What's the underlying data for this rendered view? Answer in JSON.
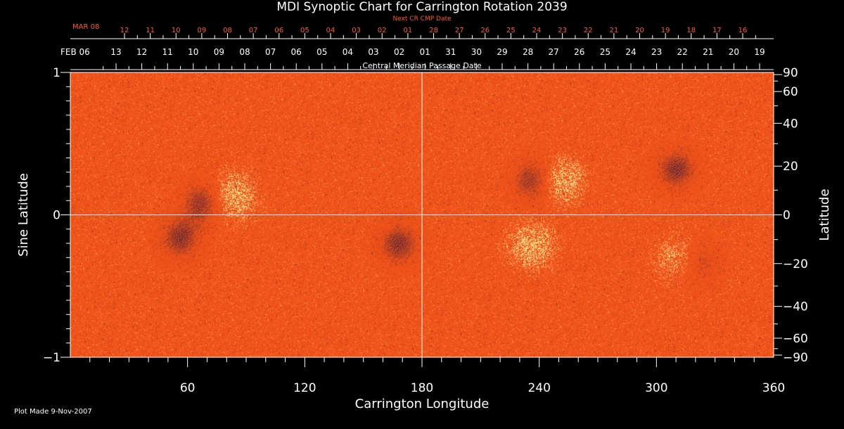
{
  "chart_data": {
    "type": "heatmap",
    "title": "MDI Synoptic Chart for Carrington Rotation 2039",
    "top_axis_label": "Central Meridian Passage Date",
    "next_axis_label": "Next CR CMP Date",
    "xlabel": "Carrington Longitude",
    "ylabel_left": "Sine Latitude",
    "ylabel_right": "Latitude",
    "xlim": [
      0,
      360
    ],
    "ylim_sine": [
      -1,
      1
    ],
    "x_ticks": [
      60,
      120,
      180,
      240,
      300,
      360
    ],
    "y_ticks_sine": [
      {
        "value": 1,
        "label": "1"
      },
      {
        "value": 0,
        "label": "0"
      },
      {
        "value": -1,
        "label": "−1"
      }
    ],
    "y_ticks_deg": [
      {
        "value": 90,
        "label": "90"
      },
      {
        "value": 60,
        "label": "60"
      },
      {
        "value": 40,
        "label": "40"
      },
      {
        "value": 20,
        "label": "20"
      },
      {
        "value": 0,
        "label": "0"
      },
      {
        "value": -20,
        "label": "−20"
      },
      {
        "value": -40,
        "label": "−40"
      },
      {
        "value": -60,
        "label": "−60"
      },
      {
        "value": -90,
        "label": "−90"
      }
    ],
    "cmp_date_first_label": "FEB 06",
    "cmp_dates": [
      "13",
      "12",
      "11",
      "10",
      "09",
      "08",
      "07",
      "06",
      "05",
      "04",
      "03",
      "02",
      "01",
      "31",
      "30",
      "29",
      "28",
      "27",
      "26",
      "25",
      "24",
      "23",
      "22",
      "21",
      "20",
      "19"
    ],
    "next_cr_first_label": "MAR 08",
    "next_cr_dates": [
      "12",
      "11",
      "10",
      "09",
      "08",
      "07",
      "06",
      "05",
      "04",
      "03",
      "02",
      "01",
      "28",
      "27",
      "26",
      "25",
      "24",
      "23",
      "22",
      "21",
      "20",
      "19",
      "18",
      "17",
      "16"
    ],
    "regions": [
      {
        "lon": 237,
        "sinlat": 0.24,
        "polarity": "negative"
      },
      {
        "lon": 251,
        "sinlat": 0.24,
        "polarity": "positive"
      },
      {
        "lon": 320,
        "sinlat": -0.33,
        "polarity": "negative"
      },
      {
        "lon": 313,
        "sinlat": -0.31,
        "polarity": "positive"
      },
      {
        "lon": 56,
        "sinlat": -0.16,
        "polarity": "negative"
      },
      {
        "lon": 83,
        "sinlat": 0.13,
        "polarity": "positive"
      },
      {
        "lon": 68,
        "sinlat": 0.09,
        "polarity": "negative"
      },
      {
        "lon": 168,
        "sinlat": -0.2,
        "polarity": "negative"
      },
      {
        "lon": 236,
        "sinlat": -0.22,
        "polarity": "positive"
      },
      {
        "lon": 310,
        "sinlat": 0.32,
        "polarity": "negative"
      }
    ],
    "colors": {
      "background": "#000000",
      "field_base": "#f0541a",
      "positive": "#ffe890",
      "negative": "#1a1040",
      "next_axis": "#ff5a28",
      "axes": "#ffffff"
    }
  },
  "footer": {
    "plot_made": "Plot Made  9-Nov-2007"
  }
}
